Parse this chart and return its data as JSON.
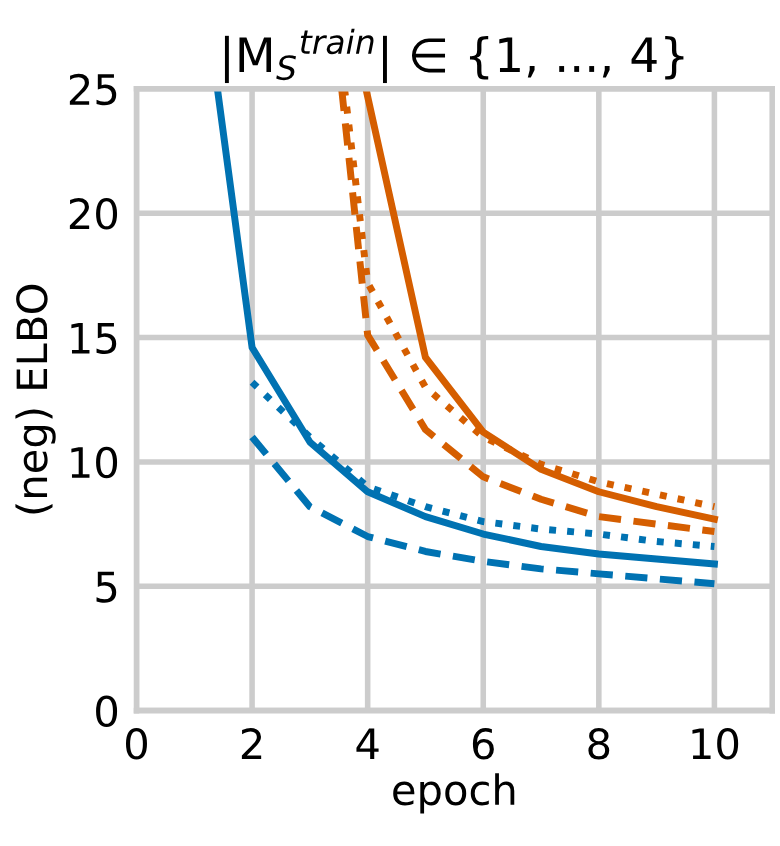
{
  "chart_data": {
    "type": "line",
    "title": "|M$_{S}$$^{train}$| ∈ {1, ..., 4}",
    "xlabel": "epoch",
    "ylabel": "(neg) ELBO",
    "series": [
      {
        "color": "#0072b2",
        "line_style": "solid",
        "x": [
          1.4,
          2,
          3,
          4,
          5,
          6,
          7,
          8,
          9,
          10
        ],
        "values": [
          25,
          14.6,
          10.8,
          8.8,
          7.8,
          7.1,
          6.6,
          6.3,
          6.1,
          5.9
        ]
      },
      {
        "color": "#0072b2",
        "line_style": "dotted",
        "x": [
          2,
          3,
          4,
          5,
          6,
          7,
          8,
          9,
          10
        ],
        "values": [
          13.2,
          11.0,
          9.0,
          8.2,
          7.6,
          7.3,
          7.1,
          6.8,
          6.6
        ]
      },
      {
        "color": "#0072b2",
        "line_style": "dashed",
        "x": [
          2,
          3,
          4,
          5,
          6,
          7,
          8,
          9,
          10
        ],
        "values": [
          11.0,
          8.2,
          7.0,
          6.4,
          6.0,
          5.7,
          5.5,
          5.3,
          5.1
        ]
      },
      {
        "color": "#d55e00",
        "line_style": "solid",
        "x": [
          3.97,
          5,
          6,
          7,
          8,
          9,
          10
        ],
        "values": [
          25,
          14.2,
          11.2,
          9.7,
          8.8,
          8.2,
          7.7
        ]
      },
      {
        "color": "#d55e00",
        "line_style": "dotted",
        "x": [
          3.6,
          4,
          5,
          6,
          7,
          8,
          9,
          10
        ],
        "values": [
          25,
          17.2,
          13.0,
          11.0,
          9.9,
          9.2,
          8.7,
          8.2
        ]
      },
      {
        "color": "#d55e00",
        "line_style": "dashed",
        "x": [
          3.55,
          4,
          5,
          6,
          7,
          8,
          9,
          10
        ],
        "values": [
          25,
          15.1,
          11.3,
          9.4,
          8.5,
          7.8,
          7.5,
          7.2
        ]
      }
    ],
    "xlim": [
      0,
      11
    ],
    "ylim": [
      0,
      25
    ],
    "xticks": [
      0,
      2,
      4,
      6,
      8,
      10
    ],
    "yticks": [
      0,
      5,
      10,
      15,
      20,
      25
    ],
    "grid": true,
    "legend": false
  }
}
